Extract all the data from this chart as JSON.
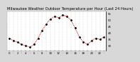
{
  "title": "Milwaukee Weather Outdoor Temperature per Hour (Last 24 Hours)",
  "hours": [
    0,
    1,
    2,
    3,
    4,
    5,
    6,
    7,
    8,
    9,
    10,
    11,
    12,
    13,
    14,
    15,
    16,
    17,
    18,
    19,
    20,
    21,
    22,
    23
  ],
  "temps": [
    36,
    34,
    33,
    31,
    30,
    29,
    31,
    36,
    42,
    47,
    51,
    53,
    52,
    54,
    53,
    50,
    44,
    37,
    33,
    31,
    34,
    36,
    35,
    37
  ],
  "line_color": "#cc0000",
  "marker_color": "#000000",
  "bg_color": "#d8d8d8",
  "plot_bg": "#ffffff",
  "grid_color": "#aaaaaa",
  "text_color": "#000000",
  "ylim": [
    26,
    57
  ],
  "yticks": [
    30,
    35,
    40,
    45,
    50,
    55
  ],
  "ytick_labels": [
    "30",
    "35",
    "40",
    "45",
    "50",
    "55"
  ],
  "title_fontsize": 3.8,
  "tick_fontsize": 2.8,
  "linewidth": 0.7,
  "markersize": 1.5
}
